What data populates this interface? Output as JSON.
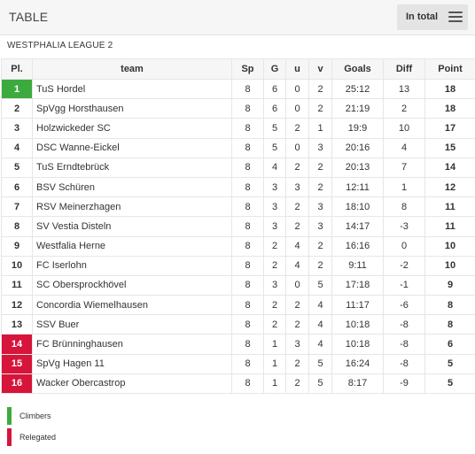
{
  "header": {
    "title": "TABLE",
    "view_label": "In total",
    "menu_icon": "hamburger-menu-icon"
  },
  "league": {
    "name": "WESTPHALIA LEAGUE 2"
  },
  "colors": {
    "climbers": "#3daa3f",
    "relegated": "#d7143a"
  },
  "table": {
    "columns": {
      "pl": "Pl.",
      "team": "team",
      "sp": "Sp",
      "g": "G",
      "u": "u",
      "v": "v",
      "goals": "Goals",
      "diff": "Diff",
      "point": "Point"
    },
    "rows": [
      {
        "pl": "1",
        "team": "TuS Hordel",
        "sp": "8",
        "g": "6",
        "u": "0",
        "v": "2",
        "goals": "25:12",
        "diff": "13",
        "point": "18",
        "zone": "climbers"
      },
      {
        "pl": "2",
        "team": "SpVgg Horsthausen",
        "sp": "8",
        "g": "6",
        "u": "0",
        "v": "2",
        "goals": "21:19",
        "diff": "2",
        "point": "18",
        "zone": ""
      },
      {
        "pl": "3",
        "team": "Holzwickeder SC",
        "sp": "8",
        "g": "5",
        "u": "2",
        "v": "1",
        "goals": "19:9",
        "diff": "10",
        "point": "17",
        "zone": ""
      },
      {
        "pl": "4",
        "team": "DSC Wanne-Eickel",
        "sp": "8",
        "g": "5",
        "u": "0",
        "v": "3",
        "goals": "20:16",
        "diff": "4",
        "point": "15",
        "zone": ""
      },
      {
        "pl": "5",
        "team": "TuS Erndtebrück",
        "sp": "8",
        "g": "4",
        "u": "2",
        "v": "2",
        "goals": "20:13",
        "diff": "7",
        "point": "14",
        "zone": ""
      },
      {
        "pl": "6",
        "team": "BSV Schüren",
        "sp": "8",
        "g": "3",
        "u": "3",
        "v": "2",
        "goals": "12:11",
        "diff": "1",
        "point": "12",
        "zone": ""
      },
      {
        "pl": "7",
        "team": "RSV Meinerzhagen",
        "sp": "8",
        "g": "3",
        "u": "2",
        "v": "3",
        "goals": "18:10",
        "diff": "8",
        "point": "11",
        "zone": ""
      },
      {
        "pl": "8",
        "team": "SV Vestia Disteln",
        "sp": "8",
        "g": "3",
        "u": "2",
        "v": "3",
        "goals": "14:17",
        "diff": "-3",
        "point": "11",
        "zone": ""
      },
      {
        "pl": "9",
        "team": "Westfalia Herne",
        "sp": "8",
        "g": "2",
        "u": "4",
        "v": "2",
        "goals": "16:16",
        "diff": "0",
        "point": "10",
        "zone": ""
      },
      {
        "pl": "10",
        "team": "FC Iserlohn",
        "sp": "8",
        "g": "2",
        "u": "4",
        "v": "2",
        "goals": "9:11",
        "diff": "-2",
        "point": "10",
        "zone": ""
      },
      {
        "pl": "11",
        "team": "SC Obersprockhövel",
        "sp": "8",
        "g": "3",
        "u": "0",
        "v": "5",
        "goals": "17:18",
        "diff": "-1",
        "point": "9",
        "zone": ""
      },
      {
        "pl": "12",
        "team": "Concordia Wiemelhausen",
        "sp": "8",
        "g": "2",
        "u": "2",
        "v": "4",
        "goals": "11:17",
        "diff": "-6",
        "point": "8",
        "zone": ""
      },
      {
        "pl": "13",
        "team": "SSV Buer",
        "sp": "8",
        "g": "2",
        "u": "2",
        "v": "4",
        "goals": "10:18",
        "diff": "-8",
        "point": "8",
        "zone": ""
      },
      {
        "pl": "14",
        "team": "FC Brünninghausen",
        "sp": "8",
        "g": "1",
        "u": "3",
        "v": "4",
        "goals": "10:18",
        "diff": "-8",
        "point": "6",
        "zone": "relegated"
      },
      {
        "pl": "15",
        "team": "SpVg Hagen 11",
        "sp": "8",
        "g": "1",
        "u": "2",
        "v": "5",
        "goals": "16:24",
        "diff": "-8",
        "point": "5",
        "zone": "relegated"
      },
      {
        "pl": "16",
        "team": "Wacker Obercastrop",
        "sp": "8",
        "g": "1",
        "u": "2",
        "v": "5",
        "goals": "8:17",
        "diff": "-9",
        "point": "5",
        "zone": "relegated"
      }
    ]
  },
  "legend": [
    {
      "label": "Climbers",
      "color": "#3daa3f"
    },
    {
      "label": "Relegated",
      "color": "#d7143a"
    }
  ]
}
